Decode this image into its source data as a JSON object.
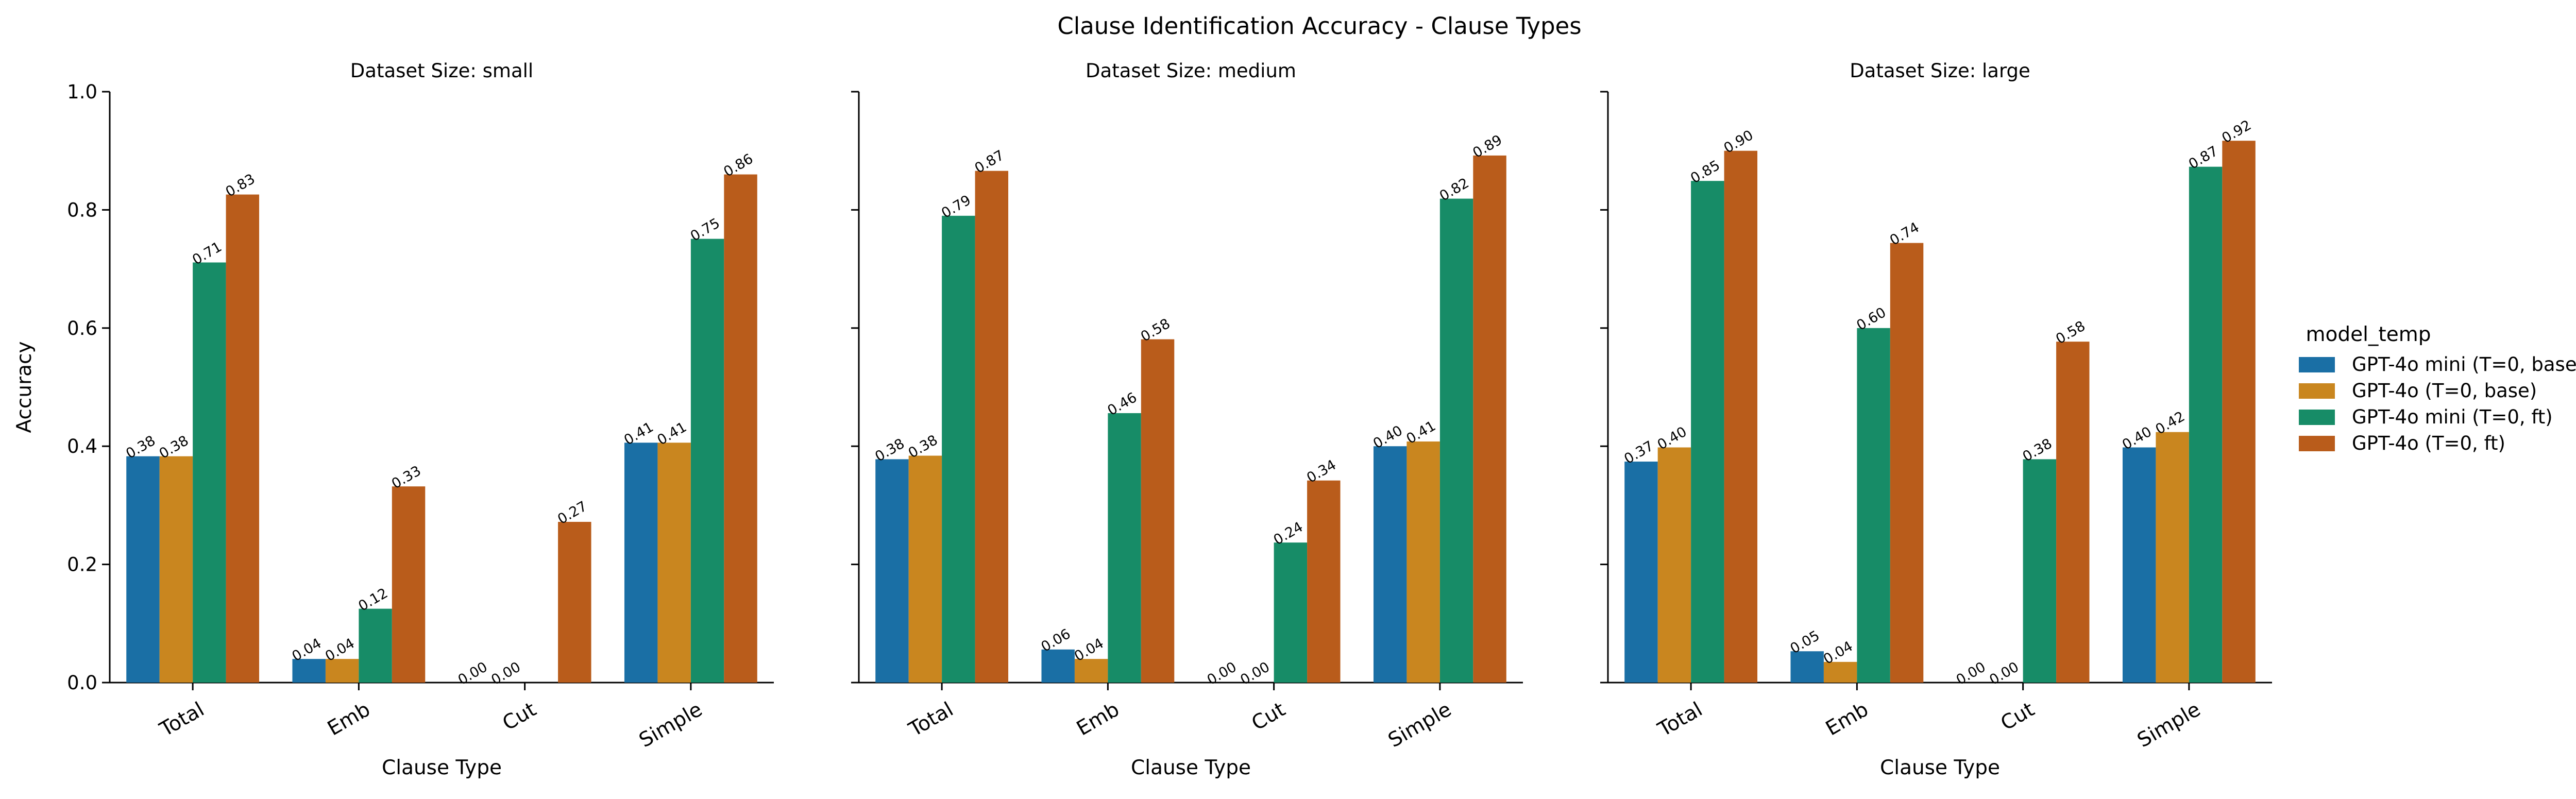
{
  "title": "Clause Identification Accuracy - Clause Types",
  "legend": {
    "title": "model_temp",
    "placement": "right",
    "entries": [
      {
        "label": "GPT-4o mini (T=0, base)",
        "color": "#1a6fa5"
      },
      {
        "label": "GPT-4o (T=0, base)",
        "color": "#c9861f"
      },
      {
        "label": "GPT-4o mini (T=0, ft)",
        "color": "#178c67"
      },
      {
        "label": "GPT-4o (T=0, ft)",
        "color": "#b95c1b"
      }
    ]
  },
  "chart_data": [
    {
      "type": "bar",
      "title": "Dataset Size: small",
      "xlabel": "Clause Type",
      "ylabel": "Accuracy",
      "ylim": [
        0,
        1.0
      ],
      "yticks": [
        "0.0",
        "0.2",
        "0.4",
        "0.6",
        "0.8",
        "1.0"
      ],
      "categories": [
        "Total",
        "Emb",
        "Cut",
        "Simple"
      ],
      "series": [
        {
          "name": "GPT-4o mini (T=0, base)",
          "values": [
            0.383,
            0.04,
            0.0,
            0.406
          ],
          "labels": [
            "0.38",
            "0.04",
            "0.00",
            "0.41"
          ]
        },
        {
          "name": "GPT-4o (T=0, base)",
          "values": [
            0.383,
            0.04,
            0.0,
            0.406
          ],
          "labels": [
            "0.38",
            "0.04",
            "0.00",
            "0.41"
          ]
        },
        {
          "name": "GPT-4o mini (T=0, ft)",
          "values": [
            0.711,
            0.125,
            null,
            0.751
          ],
          "labels": [
            "0.71",
            "0.12",
            "0.00",
            "0.75"
          ]
        },
        {
          "name": "GPT-4o (T=0, ft)",
          "values": [
            0.826,
            0.332,
            0.272,
            0.86
          ],
          "labels": [
            "0.83",
            "0.33",
            "0.27",
            "0.86"
          ]
        }
      ]
    },
    {
      "type": "bar",
      "title": "Dataset Size: medium",
      "xlabel": "Clause Type",
      "ylabel": "",
      "ylim": [
        0,
        1.0
      ],
      "categories": [
        "Total",
        "Emb",
        "Cut",
        "Simple"
      ],
      "series": [
        {
          "name": "GPT-4o mini (T=0, base)",
          "values": [
            0.378,
            0.056,
            0.0,
            0.4
          ],
          "labels": [
            "0.38",
            "0.06",
            "0.00",
            "0.40"
          ]
        },
        {
          "name": "GPT-4o (T=0, base)",
          "values": [
            0.384,
            0.04,
            0.0,
            0.408
          ],
          "labels": [
            "0.38",
            "0.04",
            "0.00",
            "0.41"
          ]
        },
        {
          "name": "GPT-4o mini (T=0, ft)",
          "values": [
            0.79,
            0.456,
            0.237,
            0.819
          ],
          "labels": [
            "0.79",
            "0.46",
            "0.24",
            "0.82"
          ]
        },
        {
          "name": "GPT-4o (T=0, ft)",
          "values": [
            0.866,
            0.581,
            0.342,
            0.892
          ],
          "labels": [
            "0.87",
            "0.58",
            "0.34",
            "0.89"
          ]
        }
      ]
    },
    {
      "type": "bar",
      "title": "Dataset Size: large",
      "xlabel": "Clause Type",
      "ylabel": "",
      "ylim": [
        0,
        1.0
      ],
      "categories": [
        "Total",
        "Emb",
        "Cut",
        "Simple"
      ],
      "series": [
        {
          "name": "GPT-4o mini (T=0, base)",
          "values": [
            0.374,
            0.053,
            0.0,
            0.398
          ],
          "labels": [
            "0.37",
            "0.05",
            "0.00",
            "0.40"
          ]
        },
        {
          "name": "GPT-4o (T=0, base)",
          "values": [
            0.398,
            0.035,
            0.0,
            0.424
          ],
          "labels": [
            "0.40",
            "0.04",
            "0.00",
            "0.42"
          ]
        },
        {
          "name": "GPT-4o mini (T=0, ft)",
          "values": [
            0.849,
            0.6,
            0.378,
            0.873
          ],
          "labels": [
            "0.85",
            "0.60",
            "0.38",
            "0.87"
          ]
        },
        {
          "name": "GPT-4o (T=0, ft)",
          "values": [
            0.9,
            0.744,
            0.577,
            0.917
          ],
          "labels": [
            "0.90",
            "0.74",
            "0.58",
            "0.92"
          ]
        }
      ]
    }
  ]
}
